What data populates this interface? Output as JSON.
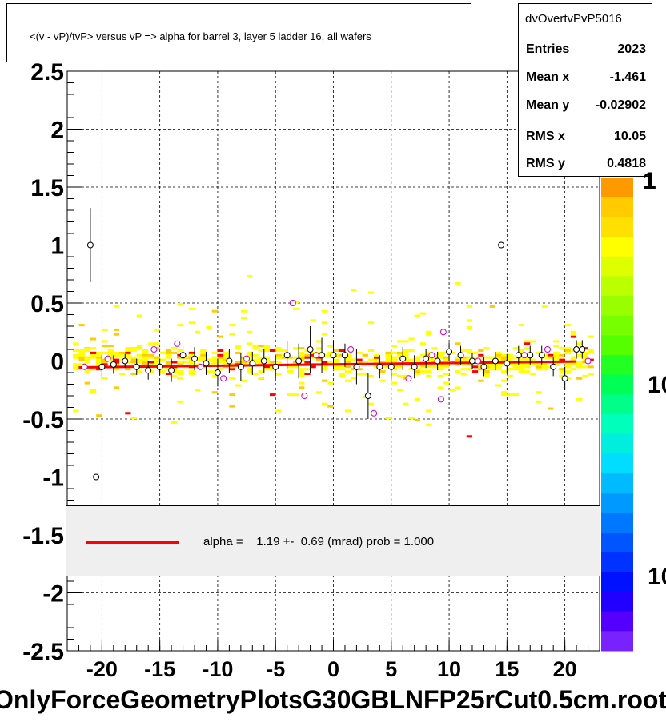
{
  "title": "<(v - vP)/tvP> versus   vP => alpha for barrel 3, layer 5 ladder 16, all wafers",
  "stats": {
    "name": "dvOvertvPvP5016",
    "rows": [
      {
        "label": "Entries",
        "value": "2023"
      },
      {
        "label": "Mean x",
        "value": "-1.461"
      },
      {
        "label": "Mean y",
        "value": "-0.02902"
      },
      {
        "label": "RMS x",
        "value": "10.05"
      },
      {
        "label": "RMS y",
        "value": "0.4818"
      }
    ]
  },
  "fit_legend": "alpha =    1.19 +-  0.69 (mrad) prob = 1.000",
  "x_axis_title": "OnlyForceGeometryPlotsG30GBLNFP25rCut0.5cm.root",
  "palette_labels": [
    "1",
    "10",
    "10"
  ],
  "colors": {
    "fit_line": "#ff0000",
    "hist_main": "#ffff00",
    "hist_mid": "#ffcc00",
    "hist_high": "#ff0000",
    "marker_black": "#000000",
    "marker_magenta": "#cc00cc",
    "legend_bg": "#efefef"
  },
  "chart_data": {
    "type": "scatter",
    "description_type": "2D histogram with profile points and linear fit",
    "xlim": [
      -23,
      23
    ],
    "ylim": [
      -2.5,
      2.5
    ],
    "x_ticks": [
      "-20",
      "-15",
      "-10",
      "-5",
      "0",
      "5",
      "10",
      "15",
      "20"
    ],
    "y_ticks": [
      "-2.5",
      "-2",
      "-1.5",
      "-1",
      "-0.5",
      "0",
      "0.5",
      "1",
      "1.5",
      "2",
      "2.5"
    ],
    "grid": true,
    "fit": {
      "slope": 0.00119,
      "intercept": -0.029,
      "x_range": [
        -22,
        21
      ]
    },
    "profile_black": [
      {
        "x": -21,
        "y": 1.0,
        "err": 0.32
      },
      {
        "x": -20.5,
        "y": -1.0,
        "err": 0.0
      },
      {
        "x": -20,
        "y": -0.05,
        "err": 0.1
      },
      {
        "x": -19,
        "y": -0.03,
        "err": 0.08
      },
      {
        "x": -18,
        "y": 0.0,
        "err": 0.06
      },
      {
        "x": -17,
        "y": -0.05,
        "err": 0.07
      },
      {
        "x": -16,
        "y": -0.08,
        "err": 0.08
      },
      {
        "x": -15,
        "y": -0.05,
        "err": 0.07
      },
      {
        "x": -14,
        "y": -0.08,
        "err": 0.1
      },
      {
        "x": -13,
        "y": 0.05,
        "err": 0.08
      },
      {
        "x": -12,
        "y": 0.02,
        "err": 0.1
      },
      {
        "x": -11,
        "y": -0.02,
        "err": 0.1
      },
      {
        "x": -10,
        "y": -0.1,
        "err": 0.12
      },
      {
        "x": -9,
        "y": 0.0,
        "err": 0.1
      },
      {
        "x": -8,
        "y": -0.05,
        "err": 0.12
      },
      {
        "x": -7,
        "y": -0.02,
        "err": 0.1
      },
      {
        "x": -6,
        "y": 0.0,
        "err": 0.1
      },
      {
        "x": -5,
        "y": -0.05,
        "err": 0.1
      },
      {
        "x": -4,
        "y": 0.05,
        "err": 0.12
      },
      {
        "x": -3,
        "y": 0.0,
        "err": 0.15
      },
      {
        "x": -2,
        "y": 0.1,
        "err": 0.2
      },
      {
        "x": -1,
        "y": 0.05,
        "err": 0.15
      },
      {
        "x": 0,
        "y": 0.05,
        "err": 0.12
      },
      {
        "x": 1,
        "y": 0.05,
        "err": 0.1
      },
      {
        "x": 2,
        "y": -0.05,
        "err": 0.15
      },
      {
        "x": 3,
        "y": -0.3,
        "err": 0.2
      },
      {
        "x": 4,
        "y": -0.05,
        "err": 0.1
      },
      {
        "x": 5,
        "y": -0.05,
        "err": 0.1
      },
      {
        "x": 6,
        "y": 0.02,
        "err": 0.1
      },
      {
        "x": 7,
        "y": -0.05,
        "err": 0.1
      },
      {
        "x": 8,
        "y": 0.02,
        "err": 0.08
      },
      {
        "x": 9,
        "y": 0.0,
        "err": 0.08
      },
      {
        "x": 10,
        "y": 0.08,
        "err": 0.08
      },
      {
        "x": 11,
        "y": 0.05,
        "err": 0.08
      },
      {
        "x": 12,
        "y": 0.0,
        "err": 0.07
      },
      {
        "x": 13,
        "y": -0.05,
        "err": 0.08
      },
      {
        "x": 14,
        "y": 0.0,
        "err": 0.08
      },
      {
        "x": 14.5,
        "y": 1.0,
        "err": 0.0
      },
      {
        "x": 15,
        "y": -0.02,
        "err": 0.08
      },
      {
        "x": 16,
        "y": 0.05,
        "err": 0.08
      },
      {
        "x": 17,
        "y": 0.05,
        "err": 0.08
      },
      {
        "x": 18,
        "y": 0.05,
        "err": 0.08
      },
      {
        "x": 19,
        "y": -0.05,
        "err": 0.08
      },
      {
        "x": 20,
        "y": -0.15,
        "err": 0.1
      },
      {
        "x": 21,
        "y": 0.1,
        "err": 0.08
      },
      {
        "x": 21.5,
        "y": 0.1,
        "err": 0.08
      }
    ],
    "profile_magenta": [
      {
        "x": -21.5,
        "y": -0.05
      },
      {
        "x": -19.5,
        "y": 0.02
      },
      {
        "x": -15.5,
        "y": 0.1
      },
      {
        "x": -13.5,
        "y": 0.15
      },
      {
        "x": -11.5,
        "y": -0.05
      },
      {
        "x": -9.5,
        "y": -0.15
      },
      {
        "x": -7.5,
        "y": 0.02
      },
      {
        "x": -3.5,
        "y": 0.5
      },
      {
        "x": -2.5,
        "y": -0.3
      },
      {
        "x": -1.5,
        "y": 0.05
      },
      {
        "x": 1.5,
        "y": 0.1
      },
      {
        "x": 3.5,
        "y": -0.45
      },
      {
        "x": 6.5,
        "y": -0.15
      },
      {
        "x": 8.5,
        "y": 0.05
      },
      {
        "x": 9.5,
        "y": 0.25
      },
      {
        "x": 9.3,
        "y": -0.33
      },
      {
        "x": 12.5,
        "y": 0.0
      },
      {
        "x": 16.5,
        "y": 0.05
      },
      {
        "x": 18.5,
        "y": 0.1
      },
      {
        "x": 22,
        "y": 0.0
      }
    ]
  }
}
